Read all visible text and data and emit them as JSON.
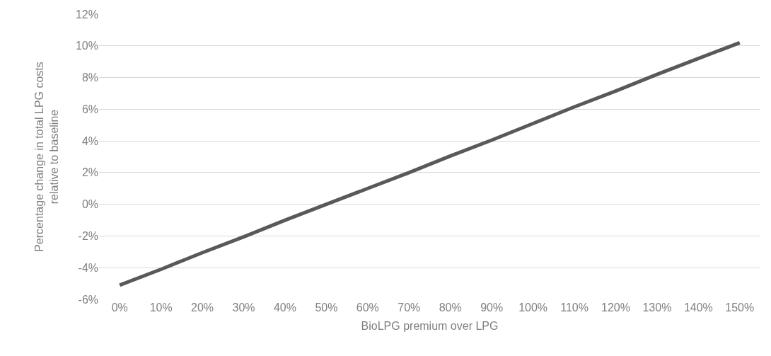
{
  "chart_data": {
    "type": "line",
    "xlabel": "BioLPG premium over LPG",
    "ylabel": "Percentage change in total LPG costs\nrelative to baseline",
    "categories": [
      "0%",
      "10%",
      "20%",
      "30%",
      "40%",
      "50%",
      "60%",
      "70%",
      "80%",
      "90%",
      "100%",
      "110%",
      "120%",
      "130%",
      "140%",
      "150%"
    ],
    "series": [
      {
        "color": "#595959",
        "values": [
          -5.1,
          -4.1,
          -3.05,
          -2.05,
          -1.0,
          0.0,
          1.0,
          2.0,
          3.05,
          4.05,
          5.1,
          6.15,
          7.15,
          8.2,
          9.2,
          10.2
        ]
      }
    ],
    "ylim": [
      -6,
      12
    ],
    "yticks": [
      {
        "value": -6,
        "label": "-6%"
      },
      {
        "value": -4,
        "label": "-4%"
      },
      {
        "value": -2,
        "label": "-2%"
      },
      {
        "value": 0,
        "label": "0%"
      },
      {
        "value": 2,
        "label": "2%"
      },
      {
        "value": 4,
        "label": "4%"
      },
      {
        "value": 6,
        "label": "6%"
      },
      {
        "value": 8,
        "label": "8%"
      },
      {
        "value": 10,
        "label": "10%"
      },
      {
        "value": 12,
        "label": "12%"
      }
    ],
    "grid": "y",
    "marker": "none",
    "line_style": "solid"
  }
}
